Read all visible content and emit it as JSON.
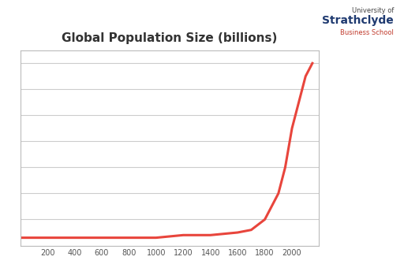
{
  "chart_data": {
    "type": "line",
    "title": "Global Population Size (billions)",
    "logo": [
      "University of",
      "Strathclyde",
      "Business School"
    ],
    "x": [
      0,
      200,
      400,
      600,
      800,
      1000,
      1200,
      1400,
      1600,
      1700,
      1800,
      1850,
      1900,
      1950,
      2000,
      2050,
      2100,
      2150
    ],
    "values": [
      0.3,
      0.3,
      0.3,
      0.3,
      0.3,
      0.3,
      0.4,
      0.4,
      0.5,
      0.6,
      1.0,
      1.5,
      2.0,
      3.0,
      4.5,
      5.5,
      6.5,
      7.0
    ],
    "color": "#e8453c",
    "xlim": [
      0,
      2200
    ],
    "xticks": [
      200,
      400,
      600,
      800,
      1000,
      1200,
      1400,
      1600,
      1800,
      2000
    ],
    "ylim": [
      0,
      7.5
    ],
    "yticks": [
      0,
      1,
      2,
      3,
      4,
      5,
      6,
      7
    ],
    "grid": true,
    "tick_labels": "x"
  }
}
